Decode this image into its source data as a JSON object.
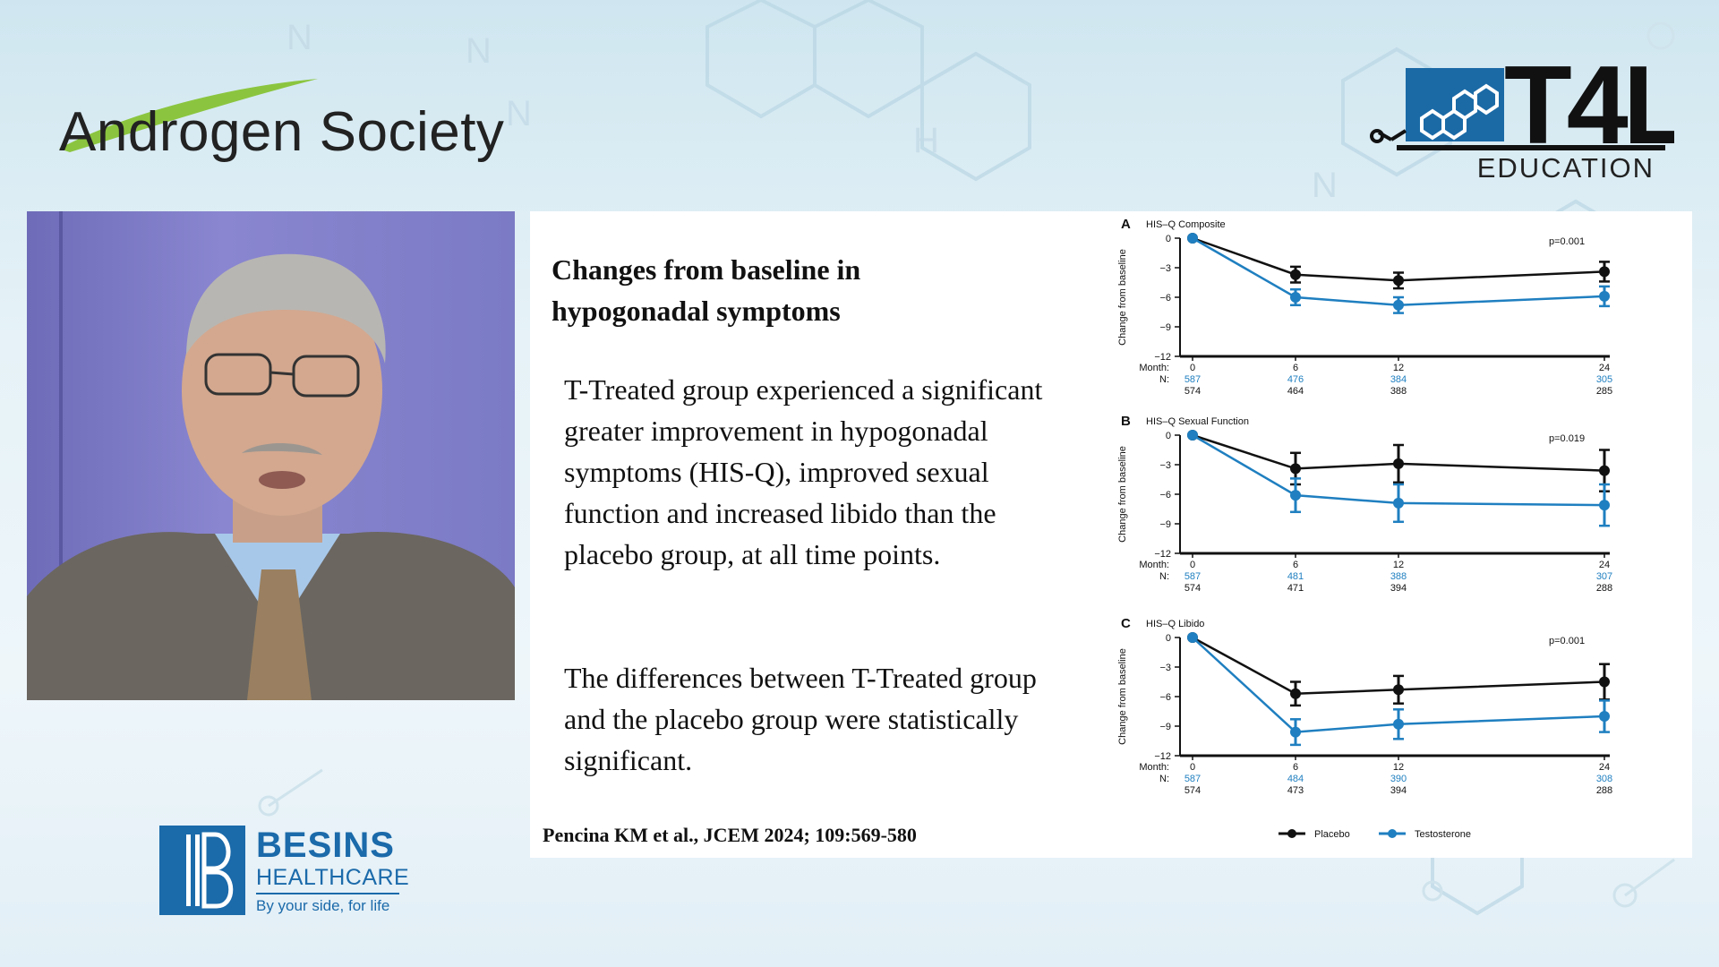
{
  "logos": {
    "androgen_society": "Androgen Society",
    "t4l_mark": "T4L",
    "t4l_education": "EDUCATION",
    "besins_name": "BESINS",
    "besins_sub": "HEALTHCARE",
    "besins_tagline": "By your side, for life"
  },
  "slide": {
    "title": "Changes from baseline in hypogonadal symptoms",
    "paragraph_1": "T-Treated group  experienced a significant greater improvement in hypogonadal symptoms (HIS-Q), improved sexual function and increased libido than the placebo group, at all time points.",
    "paragraph_2": "The differences between T-Treated group and the placebo group were statistically significant.",
    "reference": "Pencina KM et al., JCEM 2024; 109:569-580"
  },
  "colors": {
    "placebo": "#111111",
    "testosterone": "#1f7fc0"
  },
  "chart_data": [
    {
      "type": "line",
      "panel": "A",
      "title": "HIS–Q Composite",
      "ylabel": "Change from baseline",
      "x_axis_prefix": "Month:",
      "x": [
        0,
        6,
        12,
        24
      ],
      "ylim": [
        -12,
        0
      ],
      "yticks": [
        "0",
        "−3",
        "−6",
        "−9",
        "−12"
      ],
      "pvalue": "p=0.001",
      "n_prefix": "N:",
      "n_testosterone": [
        "587",
        "476",
        "384",
        "305"
      ],
      "n_placebo": [
        "574",
        "464",
        "388",
        "285"
      ],
      "series": [
        {
          "name": "Placebo",
          "values": [
            0,
            -3.7,
            -4.3,
            -3.4
          ],
          "err": [
            0,
            0.8,
            0.8,
            1.0
          ]
        },
        {
          "name": "Testosterone",
          "values": [
            0,
            -6.0,
            -6.8,
            -5.9
          ],
          "err": [
            0,
            0.8,
            0.8,
            1.0
          ]
        }
      ]
    },
    {
      "type": "line",
      "panel": "B",
      "title": "HIS–Q Sexual Function",
      "ylabel": "Change from baseline",
      "x_axis_prefix": "Month:",
      "x": [
        0,
        6,
        12,
        24
      ],
      "ylim": [
        -12,
        0
      ],
      "yticks": [
        "0",
        "−3",
        "−6",
        "−9",
        "−12"
      ],
      "pvalue": "p=0.019",
      "n_prefix": "N:",
      "n_testosterone": [
        "587",
        "481",
        "388",
        "307"
      ],
      "n_placebo": [
        "574",
        "471",
        "394",
        "288"
      ],
      "series": [
        {
          "name": "Placebo",
          "values": [
            0,
            -3.4,
            -2.9,
            -3.6
          ],
          "err": [
            0,
            1.6,
            1.9,
            2.1
          ]
        },
        {
          "name": "Testosterone",
          "values": [
            0,
            -6.1,
            -6.9,
            -7.1
          ],
          "err": [
            0,
            1.7,
            1.9,
            2.1
          ]
        }
      ]
    },
    {
      "type": "line",
      "panel": "C",
      "title": "HIS–Q Libido",
      "ylabel": "Change from baseline",
      "x_axis_prefix": "Month:",
      "x": [
        0,
        6,
        12,
        24
      ],
      "ylim": [
        -12,
        0
      ],
      "yticks": [
        "0",
        "−3",
        "−6",
        "−9",
        "−12"
      ],
      "pvalue": "p=0.001",
      "n_prefix": "N:",
      "n_testosterone": [
        "587",
        "484",
        "390",
        "308"
      ],
      "n_placebo": [
        "574",
        "473",
        "394",
        "288"
      ],
      "series": [
        {
          "name": "Placebo",
          "values": [
            0,
            -5.7,
            -5.3,
            -4.5
          ],
          "err": [
            0,
            1.2,
            1.4,
            1.8
          ]
        },
        {
          "name": "Testosterone",
          "values": [
            0,
            -9.6,
            -8.8,
            -8.0
          ],
          "err": [
            0,
            1.3,
            1.5,
            1.6
          ]
        }
      ]
    }
  ]
}
